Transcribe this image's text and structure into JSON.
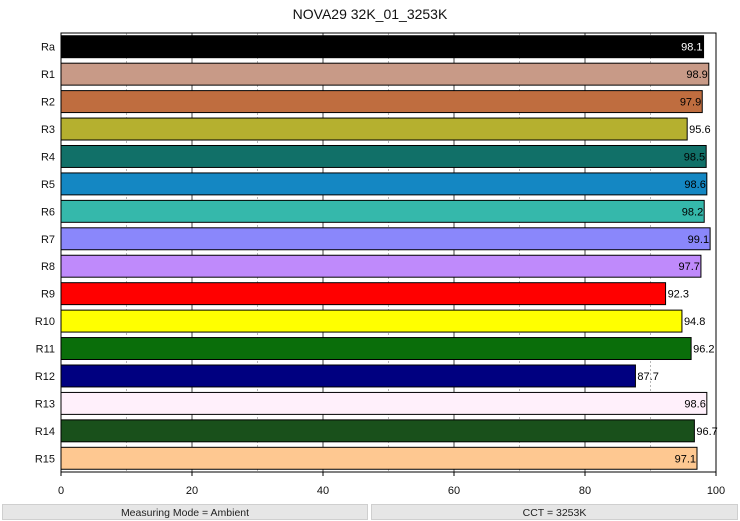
{
  "chart_data": {
    "type": "bar",
    "orientation": "horizontal",
    "title": "NOVA29 32K_01_3253K",
    "categories": [
      "Ra",
      "R1",
      "R2",
      "R3",
      "R4",
      "R5",
      "R6",
      "R7",
      "R8",
      "R9",
      "R10",
      "R11",
      "R12",
      "R13",
      "R14",
      "R15"
    ],
    "values": [
      98.1,
      98.9,
      97.9,
      95.6,
      98.5,
      98.6,
      98.2,
      99.1,
      97.7,
      92.3,
      94.8,
      96.2,
      87.7,
      98.6,
      96.7,
      97.1
    ],
    "colors": [
      "#000000",
      "#c89a87",
      "#bf6d3f",
      "#b5b02f",
      "#117068",
      "#1487c3",
      "#35b8ab",
      "#8a87fb",
      "#bf8afb",
      "#ff0000",
      "#ffff00",
      "#0a6e0a",
      "#000080",
      "#fff0fb",
      "#19501b",
      "#fec891"
    ],
    "label_colors": [
      "#ffffff",
      "#000000",
      "#000000",
      "#000000",
      "#000000",
      "#000000",
      "#000000",
      "#000000",
      "#000000",
      "#000000",
      "#000000",
      "#000000",
      "#000000",
      "#000000",
      "#000000",
      "#000000"
    ],
    "xlim": [
      0,
      100
    ],
    "xticks": [
      0,
      20,
      40,
      60,
      80,
      100
    ],
    "grid": true
  },
  "footer": {
    "left": "Measuring Mode = Ambient",
    "right": "CCT = 3253K"
  }
}
